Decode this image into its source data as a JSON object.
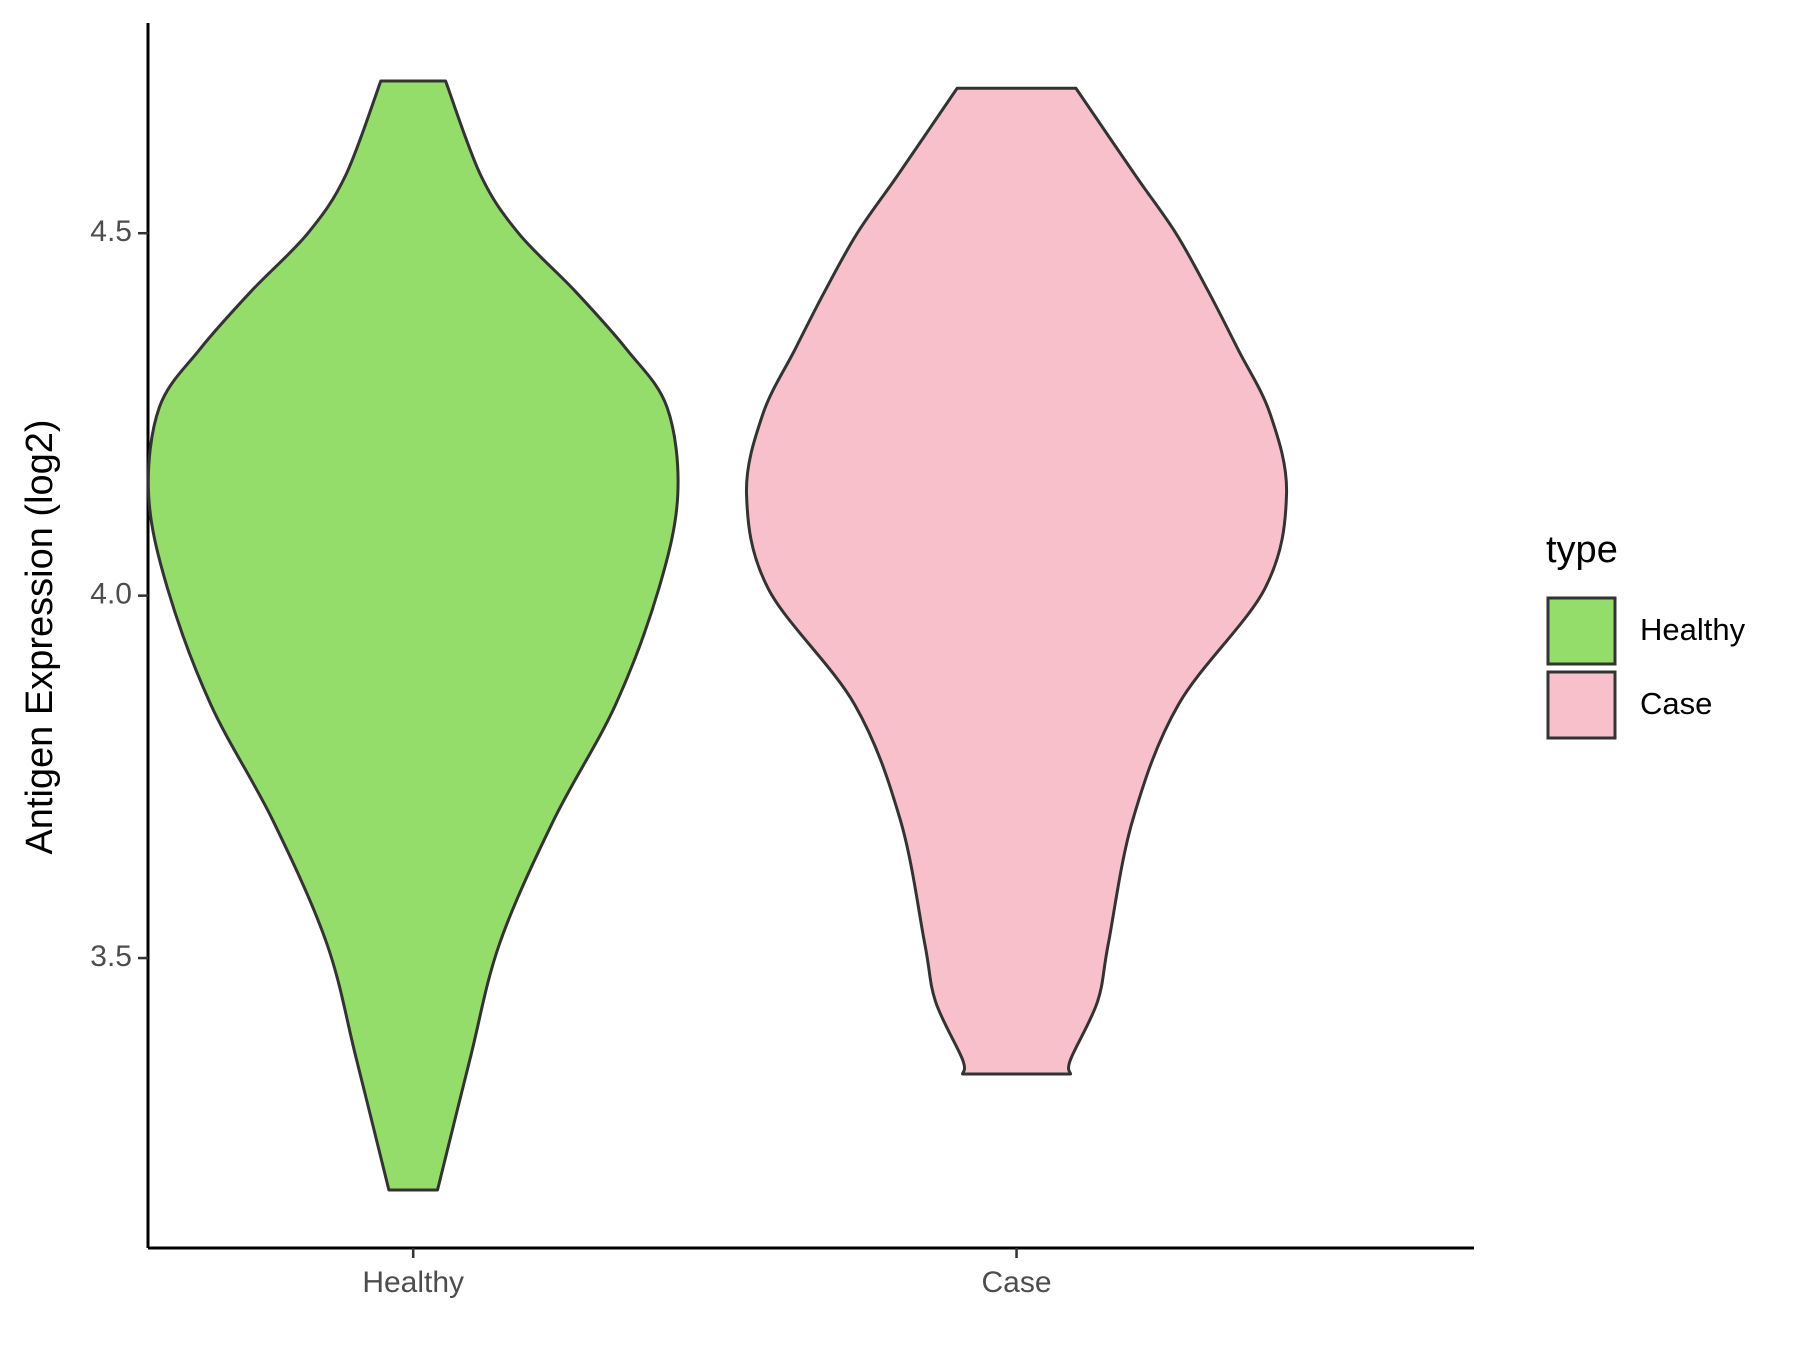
{
  "chart_data": {
    "type": "violin",
    "y_label": "Antigen Expression (log2)",
    "categories": [
      "Healthy",
      "Case"
    ],
    "legend_title": "type",
    "legend": "right",
    "series": [
      {
        "name": "Healthy",
        "color": "#95dd6b",
        "y": [
          4.71,
          4.58,
          4.5,
          4.42,
          4.34,
          4.26,
          4.14,
          4.01,
          3.85,
          3.69,
          3.52,
          3.36,
          3.18
        ],
        "width": [
          0.12,
          0.25,
          0.39,
          0.6,
          0.79,
          0.94,
          0.98,
          0.91,
          0.75,
          0.52,
          0.32,
          0.21,
          0.09
        ]
      },
      {
        "name": "Case",
        "color": "#f8c0cb",
        "y": [
          4.7,
          4.58,
          4.5,
          4.42,
          4.34,
          4.25,
          4.14,
          4.01,
          3.85,
          3.69,
          3.52,
          3.44,
          3.36,
          3.34
        ],
        "width": [
          0.22,
          0.44,
          0.59,
          0.71,
          0.82,
          0.94,
          1.0,
          0.92,
          0.6,
          0.43,
          0.34,
          0.3,
          0.2,
          0.2
        ]
      }
    ],
    "ylim": [
      3.1,
      4.79
    ],
    "yticks": [
      3.5,
      4.0,
      4.5
    ]
  }
}
